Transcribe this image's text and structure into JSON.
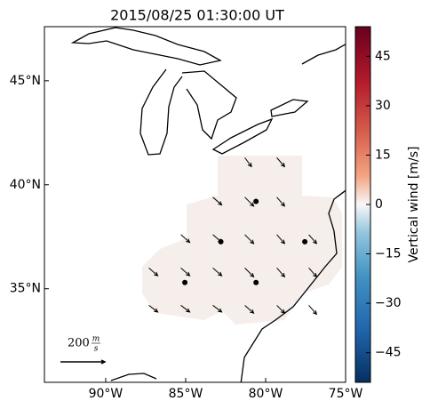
{
  "chart_data": {
    "type": "map",
    "title": "2015/08/25 01:30:00 UT",
    "xlim": [
      -93.83,
      -75
    ],
    "ylim": [
      30.5,
      47.6
    ],
    "xticks": [
      {
        "value": -90,
        "label": "90°W"
      },
      {
        "value": -85,
        "label": "85°W"
      },
      {
        "value": -80,
        "label": "80°W"
      },
      {
        "value": -75,
        "label": "75°W"
      }
    ],
    "yticks": [
      {
        "value": 45,
        "label": "45°N"
      },
      {
        "value": 40,
        "label": "40°N"
      },
      {
        "value": 35,
        "label": "35°N"
      }
    ],
    "stations": {
      "lon": [
        -80.6,
        -82.8,
        -77.55,
        -85.05,
        -80.6
      ],
      "lat": [
        39.2,
        37.26,
        37.26,
        35.3,
        35.3
      ]
    },
    "vectors": {
      "lon": [
        -81.3,
        -79.3,
        -83.3,
        -81.3,
        -79.3,
        -85.3,
        -83.3,
        -81.3,
        -79.3,
        -77.3,
        -87.3,
        -85.3,
        -83.3,
        -81.3,
        -79.3,
        -77.3,
        -87.3,
        -85.3,
        -83.3,
        -81.3,
        -79.3,
        -77.3
      ],
      "lat": [
        41.3,
        41.3,
        39.4,
        39.4,
        39.4,
        37.6,
        37.6,
        37.6,
        37.6,
        37.6,
        36.0,
        36.0,
        36.0,
        36.0,
        36.0,
        36.0,
        34.2,
        34.2,
        34.2,
        34.2,
        34.2,
        34.2
      ],
      "u": [
        30,
        35,
        40,
        40,
        35,
        40,
        40,
        40,
        35,
        35,
        40,
        40,
        40,
        40,
        35,
        35,
        40,
        40,
        40,
        40,
        35,
        35
      ],
      "v": [
        -40,
        -40,
        -35,
        -40,
        -40,
        -35,
        -35,
        -40,
        -40,
        -40,
        -35,
        -35,
        -35,
        -40,
        -40,
        -40,
        -30,
        -30,
        -30,
        -35,
        -35,
        -40
      ]
    },
    "key": {
      "value": 200,
      "unit_top": "m",
      "unit_bottom": "s"
    },
    "colorbar": {
      "label": "Vertical wind [m/s]",
      "clim": [
        -54,
        54
      ],
      "ticks": [
        45,
        30,
        15,
        0,
        {
          "value": -15,
          "label": "−15"
        },
        {
          "value": -30,
          "label": "−30"
        },
        {
          "value": -45,
          "label": "−45"
        }
      ]
    }
  }
}
